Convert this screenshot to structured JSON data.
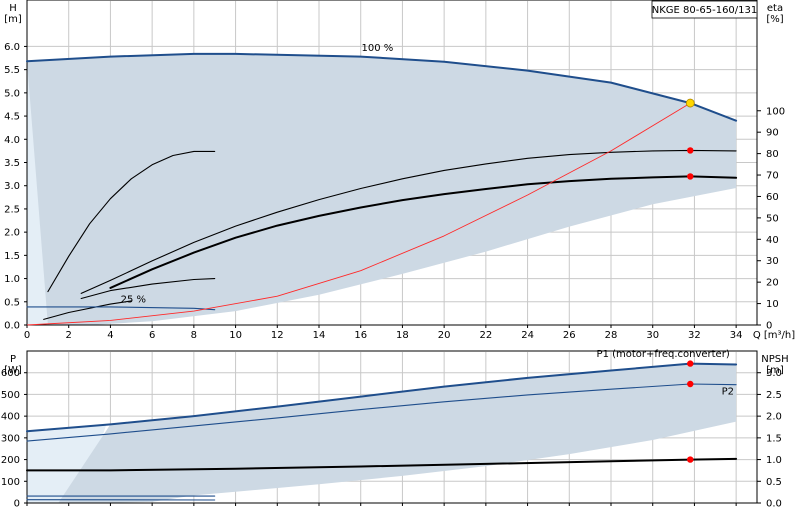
{
  "chart_data": [
    {
      "type": "line",
      "title": "NKGE 80-65-160/131",
      "xlabel": "Q [m³/h]",
      "ylabel_unit": "[m]",
      "ylabel": "H",
      "y2label": "eta",
      "y2label_unit": "[%]",
      "xlim": [
        0,
        35
      ],
      "ylim": [
        0,
        7
      ],
      "y2lim": [
        0,
        151.7
      ],
      "x_ticks": [
        0,
        2,
        4,
        6,
        8,
        10,
        12,
        14,
        16,
        18,
        20,
        22,
        24,
        26,
        28,
        30,
        32,
        34
      ],
      "y_ticks": [
        "0.0",
        "0.5",
        "1.0",
        "1.5",
        "2.0",
        "2.5",
        "3.0",
        "3.5",
        "4.0",
        "4.5",
        "5.0",
        "5.5",
        "6.0"
      ],
      "y2_ticks": [
        0,
        10,
        20,
        30,
        40,
        50,
        60,
        70,
        80,
        90,
        100
      ],
      "grid": true,
      "envelope": {
        "upper": [
          [
            0,
            5.68
          ],
          [
            4,
            5.78
          ],
          [
            8,
            5.84
          ],
          [
            10,
            5.84
          ],
          [
            16,
            5.78
          ],
          [
            20,
            5.67
          ],
          [
            24,
            5.48
          ],
          [
            28,
            5.22
          ],
          [
            31.8,
            4.78
          ],
          [
            34,
            4.4
          ]
        ],
        "lower": [
          [
            34,
            2.95
          ],
          [
            30,
            2.6
          ],
          [
            26,
            2.12
          ],
          [
            22,
            1.58
          ],
          [
            18,
            1.1
          ],
          [
            14,
            0.65
          ],
          [
            10,
            0.3
          ],
          [
            6,
            0.08
          ],
          [
            3,
            0.0
          ],
          [
            1,
            0.0
          ]
        ],
        "light_left": [
          [
            0,
            0
          ],
          [
            0,
            5.68
          ],
          [
            3.8,
            5.78
          ],
          [
            3.2,
            4.2
          ],
          [
            2.4,
            2.2
          ],
          [
            1.8,
            0.6
          ],
          [
            1.0,
            0
          ]
        ],
        "color": "#cdd9e4",
        "light_color": "#e4eef6"
      },
      "series": [
        {
          "name": "100 %",
          "role": "max",
          "color": "#1f4e8c",
          "points": [
            [
              0,
              5.68
            ],
            [
              4,
              5.78
            ],
            [
              8,
              5.84
            ],
            [
              10,
              5.84
            ],
            [
              16,
              5.78
            ],
            [
              20,
              5.67
            ],
            [
              24,
              5.48
            ],
            [
              28,
              5.22
            ],
            [
              31.8,
              4.78
            ],
            [
              34,
              4.4
            ]
          ]
        },
        {
          "role": "thin",
          "color": "#000000",
          "points": [
            [
              2.6,
              0.68
            ],
            [
              4,
              0.96
            ],
            [
              6,
              1.38
            ],
            [
              8,
              1.78
            ],
            [
              10,
              2.13
            ],
            [
              12,
              2.43
            ],
            [
              14,
              2.7
            ],
            [
              16,
              2.94
            ],
            [
              18,
              3.15
            ],
            [
              20,
              3.33
            ],
            [
              22,
              3.47
            ],
            [
              24,
              3.59
            ],
            [
              26,
              3.67
            ],
            [
              28,
              3.72
            ],
            [
              30,
              3.75
            ],
            [
              31.8,
              3.76
            ],
            [
              34,
              3.75
            ]
          ]
        },
        {
          "role": "bold",
          "color": "#000000",
          "points": [
            [
              4,
              0.8
            ],
            [
              6,
              1.2
            ],
            [
              8,
              1.56
            ],
            [
              10,
              1.88
            ],
            [
              12,
              2.14
            ],
            [
              14,
              2.35
            ],
            [
              16,
              2.53
            ],
            [
              18,
              2.69
            ],
            [
              20,
              2.82
            ],
            [
              22,
              2.93
            ],
            [
              24,
              3.03
            ],
            [
              26,
              3.1
            ],
            [
              28,
              3.15
            ],
            [
              30,
              3.18
            ],
            [
              31.8,
              3.2
            ],
            [
              34,
              3.17
            ]
          ]
        },
        {
          "role": "thin",
          "color": "#000000",
          "points": [
            [
              1,
              0.72
            ],
            [
              2,
              1.48
            ],
            [
              3,
              2.18
            ],
            [
              4,
              2.72
            ],
            [
              5,
              3.15
            ],
            [
              6,
              3.45
            ],
            [
              7,
              3.65
            ],
            [
              8,
              3.74
            ],
            [
              9,
              3.74
            ]
          ]
        },
        {
          "role": "thin",
          "color": "#000000",
          "points": [
            [
              2.6,
              0.57
            ],
            [
              4,
              0.74
            ],
            [
              6,
              0.88
            ],
            [
              8,
              0.98
            ],
            [
              9,
              1.0
            ]
          ]
        },
        {
          "name": "25 %",
          "role": "min",
          "color": "#000000",
          "points": [
            [
              0.8,
              0.12
            ],
            [
              2,
              0.27
            ],
            [
              4,
              0.45
            ],
            [
              5,
              0.52
            ]
          ]
        },
        {
          "role": "min-flat",
          "color": "#1f4e8c",
          "points": [
            [
              0,
              0.39
            ],
            [
              4,
              0.39
            ],
            [
              8,
              0.36
            ],
            [
              9,
              0.33
            ]
          ]
        },
        {
          "role": "eta",
          "color": "#ff2a2a",
          "points": [
            [
              0,
              0
            ],
            [
              4,
              0.1
            ],
            [
              8,
              0.3
            ],
            [
              12,
              0.62
            ],
            [
              16,
              1.17
            ],
            [
              20,
              1.92
            ],
            [
              24,
              2.8
            ],
            [
              28,
              3.75
            ],
            [
              31.8,
              4.78
            ]
          ]
        }
      ],
      "annotations": [
        {
          "text": "100 %",
          "x": 16.8,
          "y": 5.9
        },
        {
          "text": "25 %",
          "x": 5.1,
          "y": 0.48
        }
      ],
      "markers": [
        {
          "x": 31.8,
          "y": 4.78,
          "color": "#ffd700"
        },
        {
          "x": 31.8,
          "y": 3.76,
          "color": "#ff0000"
        },
        {
          "x": 31.8,
          "y": 3.2,
          "color": "#ff0000"
        }
      ]
    },
    {
      "type": "line",
      "ylabel": "P",
      "ylabel_unit": "[W]",
      "y2label": "NPSH",
      "y2label_unit": "[m]",
      "xlim": [
        0,
        35
      ],
      "ylim": [
        0,
        700
      ],
      "y2lim": [
        0,
        3.5
      ],
      "x_ticks": [
        0,
        2,
        4,
        6,
        8,
        10,
        12,
        14,
        16,
        18,
        20,
        22,
        24,
        26,
        28,
        30,
        32,
        34
      ],
      "y_ticks": [
        "0",
        "100",
        "200",
        "300",
        "400",
        "500",
        "600"
      ],
      "y2_ticks": [
        "0.0",
        "0.5",
        "1.0",
        "1.5",
        "2.0",
        "2.5",
        "3.0"
      ],
      "grid": true,
      "envelope": {
        "upper": [
          [
            4,
            362
          ],
          [
            8,
            400
          ],
          [
            12,
            444
          ],
          [
            16,
            490
          ],
          [
            20,
            536
          ],
          [
            24,
            576
          ],
          [
            28,
            610
          ],
          [
            31.8,
            642
          ],
          [
            34,
            638
          ]
        ],
        "lower": [
          [
            34,
            375
          ],
          [
            30,
            290
          ],
          [
            26,
            225
          ],
          [
            22,
            170
          ],
          [
            18,
            125
          ],
          [
            14,
            86
          ],
          [
            10,
            52
          ],
          [
            8,
            35
          ],
          [
            6,
            5
          ],
          [
            3,
            0
          ],
          [
            1.5,
            0
          ]
        ],
        "light_left": [
          [
            0,
            0
          ],
          [
            0,
            330
          ],
          [
            3.8,
            362
          ],
          [
            3.4,
            240
          ],
          [
            2.6,
            90
          ],
          [
            1.5,
            0
          ]
        ],
        "color": "#cdd9e4",
        "light_color": "#e4eef6"
      },
      "series": [
        {
          "name": "P1 (motor+freq.converter)",
          "role": "p1",
          "color": "#1f4e8c",
          "points": [
            [
              0,
              330
            ],
            [
              4,
              362
            ],
            [
              8,
              400
            ],
            [
              12,
              444
            ],
            [
              16,
              490
            ],
            [
              20,
              536
            ],
            [
              24,
              576
            ],
            [
              28,
              610
            ],
            [
              31.8,
              642
            ],
            [
              34,
              638
            ]
          ]
        },
        {
          "name": "P2",
          "role": "p2",
          "color": "#1f4e8c",
          "points": [
            [
              0,
              285
            ],
            [
              4,
              318
            ],
            [
              8,
              355
            ],
            [
              12,
              392
            ],
            [
              16,
              430
            ],
            [
              20,
              466
            ],
            [
              24,
              498
            ],
            [
              28,
              524
            ],
            [
              31.8,
              548
            ],
            [
              34,
              545
            ]
          ]
        },
        {
          "role": "npsh",
          "color": "#000000",
          "points": [
            [
              0,
              150
            ],
            [
              4,
              150
            ],
            [
              10,
              158
            ],
            [
              16,
              168
            ],
            [
              22,
              180
            ],
            [
              28,
              192
            ],
            [
              31.8,
              200
            ],
            [
              34,
              203
            ]
          ]
        },
        {
          "role": "min-p1",
          "color": "#1f4e8c",
          "points": [
            [
              0,
              32
            ],
            [
              9,
              32
            ]
          ]
        },
        {
          "role": "min-p2",
          "color": "#1f4e8c",
          "points": [
            [
              0,
              15
            ],
            [
              9,
              14
            ]
          ]
        }
      ],
      "annotations": [
        {
          "text": "P1 (motor+freq.converter)",
          "x": 30.5,
          "y": 672
        },
        {
          "text": "P2",
          "x": 33.6,
          "y": 500
        }
      ],
      "markers": [
        {
          "x": 31.8,
          "y": 642,
          "color": "#ff0000"
        },
        {
          "x": 31.8,
          "y": 548,
          "color": "#ff0000"
        },
        {
          "x": 31.8,
          "y": 200,
          "color": "#ff0000"
        }
      ]
    }
  ]
}
